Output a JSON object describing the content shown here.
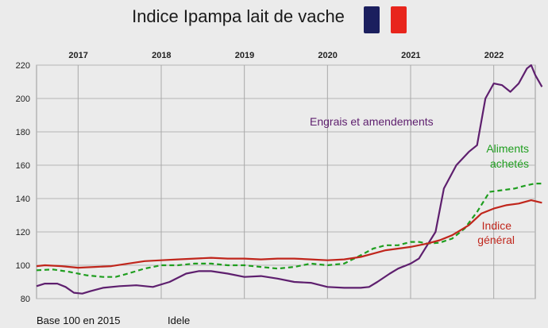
{
  "title": "Indice Ipampa lait de vache",
  "flag": {
    "blue": "#1b1f5e",
    "red": "#e8251c"
  },
  "footer": {
    "base_note": "Base 100 en 2015",
    "source": "Idele"
  },
  "chart_data": {
    "type": "line",
    "x_years": [
      "2017",
      "2018",
      "2019",
      "2020",
      "2021",
      "2022"
    ],
    "x_range": [
      2016.5,
      2022.5
    ],
    "ylim": [
      80,
      220
    ],
    "yticks": [
      80,
      100,
      120,
      140,
      160,
      180,
      200,
      220
    ],
    "grid": true,
    "series": [
      {
        "name": "Engrais et amendements",
        "color": "#5e1f6e",
        "dash": false,
        "points": [
          [
            2016.5,
            87.5
          ],
          [
            2016.6,
            89
          ],
          [
            2016.75,
            89
          ],
          [
            2016.85,
            87
          ],
          [
            2016.95,
            83.5
          ],
          [
            2017.05,
            83
          ],
          [
            2017.15,
            84.5
          ],
          [
            2017.3,
            86.5
          ],
          [
            2017.5,
            87.5
          ],
          [
            2017.7,
            88
          ],
          [
            2017.9,
            87
          ],
          [
            2018.1,
            90
          ],
          [
            2018.3,
            95
          ],
          [
            2018.45,
            96.5
          ],
          [
            2018.6,
            96.5
          ],
          [
            2018.8,
            95
          ],
          [
            2019.0,
            93
          ],
          [
            2019.2,
            93.5
          ],
          [
            2019.4,
            92
          ],
          [
            2019.6,
            90
          ],
          [
            2019.8,
            89.5
          ],
          [
            2020.0,
            87
          ],
          [
            2020.2,
            86.5
          ],
          [
            2020.4,
            86.5
          ],
          [
            2020.5,
            87
          ],
          [
            2020.6,
            90
          ],
          [
            2020.75,
            95
          ],
          [
            2020.85,
            98
          ],
          [
            2021.0,
            101
          ],
          [
            2021.1,
            104
          ],
          [
            2021.2,
            112
          ],
          [
            2021.3,
            120
          ],
          [
            2021.4,
            146
          ],
          [
            2021.55,
            160
          ],
          [
            2021.7,
            168
          ],
          [
            2021.8,
            172
          ],
          [
            2021.9,
            200
          ],
          [
            2022.0,
            209
          ],
          [
            2022.1,
            208
          ],
          [
            2022.2,
            204
          ],
          [
            2022.3,
            209
          ],
          [
            2022.4,
            218
          ],
          [
            2022.45,
            220
          ],
          [
            2022.5,
            214
          ],
          [
            2022.58,
            207
          ]
        ]
      },
      {
        "name": "Aliments achetés",
        "color": "#1f9e1f",
        "dash": true,
        "points": [
          [
            2016.5,
            97
          ],
          [
            2016.7,
            97.5
          ],
          [
            2016.9,
            96
          ],
          [
            2017.1,
            94
          ],
          [
            2017.3,
            93
          ],
          [
            2017.45,
            93
          ],
          [
            2017.6,
            95
          ],
          [
            2017.8,
            98
          ],
          [
            2018.0,
            100
          ],
          [
            2018.2,
            100
          ],
          [
            2018.4,
            101
          ],
          [
            2018.6,
            101
          ],
          [
            2018.8,
            100
          ],
          [
            2019.0,
            100
          ],
          [
            2019.2,
            99
          ],
          [
            2019.4,
            98
          ],
          [
            2019.6,
            99
          ],
          [
            2019.8,
            101
          ],
          [
            2020.0,
            100
          ],
          [
            2020.2,
            101
          ],
          [
            2020.4,
            106
          ],
          [
            2020.55,
            110
          ],
          [
            2020.7,
            112
          ],
          [
            2020.85,
            112
          ],
          [
            2021.0,
            114
          ],
          [
            2021.1,
            114
          ],
          [
            2021.2,
            113
          ],
          [
            2021.35,
            113.5
          ],
          [
            2021.5,
            116
          ],
          [
            2021.65,
            122
          ],
          [
            2021.8,
            132
          ],
          [
            2021.95,
            144
          ],
          [
            2022.1,
            145
          ],
          [
            2022.25,
            146
          ],
          [
            2022.4,
            148
          ],
          [
            2022.5,
            149
          ],
          [
            2022.58,
            149
          ]
        ]
      },
      {
        "name": "Indice général",
        "color": "#c0261c",
        "dash": false,
        "points": [
          [
            2016.5,
            99.5
          ],
          [
            2016.6,
            100
          ],
          [
            2016.8,
            99.5
          ],
          [
            2017.0,
            98.5
          ],
          [
            2017.2,
            99
          ],
          [
            2017.4,
            99.5
          ],
          [
            2017.6,
            101
          ],
          [
            2017.8,
            102.5
          ],
          [
            2018.0,
            103
          ],
          [
            2018.2,
            103.5
          ],
          [
            2018.4,
            104
          ],
          [
            2018.6,
            104.5
          ],
          [
            2018.8,
            104
          ],
          [
            2019.0,
            104
          ],
          [
            2019.2,
            103.5
          ],
          [
            2019.4,
            104
          ],
          [
            2019.6,
            104
          ],
          [
            2019.8,
            103.5
          ],
          [
            2020.0,
            103
          ],
          [
            2020.2,
            103.5
          ],
          [
            2020.4,
            105
          ],
          [
            2020.55,
            107
          ],
          [
            2020.7,
            109
          ],
          [
            2020.85,
            110
          ],
          [
            2021.0,
            111
          ],
          [
            2021.2,
            113
          ],
          [
            2021.35,
            115
          ],
          [
            2021.5,
            118
          ],
          [
            2021.7,
            124
          ],
          [
            2021.85,
            131
          ],
          [
            2022.0,
            134
          ],
          [
            2022.15,
            136
          ],
          [
            2022.3,
            137
          ],
          [
            2022.45,
            139
          ],
          [
            2022.58,
            137.5
          ]
        ]
      }
    ],
    "annotations": [
      {
        "text": "Engrais et amendements",
        "color": "#5e1f6e"
      },
      {
        "text": "Aliments",
        "color": "#1f9e1f"
      },
      {
        "text": "achetés",
        "color": "#1f9e1f"
      },
      {
        "text": "Indice",
        "color": "#c0261c"
      },
      {
        "text": "général",
        "color": "#c0261c"
      }
    ]
  }
}
